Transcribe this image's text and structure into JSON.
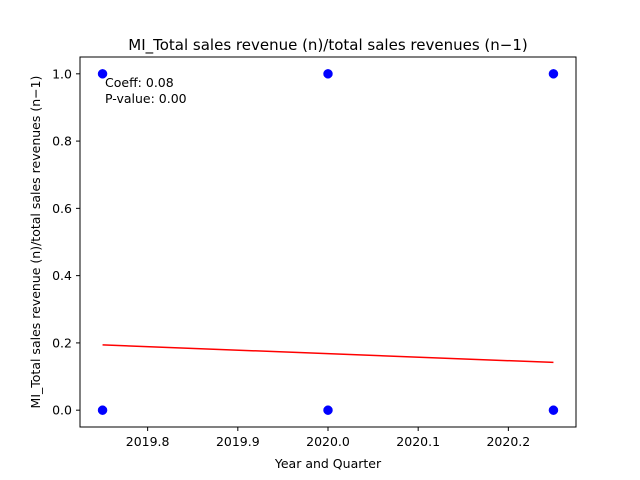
{
  "chart_data": {
    "type": "scatter",
    "title": "MI_Total sales revenue (n)/total sales revenues (n−1)",
    "xlabel": "Year and Quarter",
    "ylabel": "MI_Total sales revenue (n)/total sales revenues (n−1)",
    "xlim": [
      2019.725,
      2020.275
    ],
    "ylim": [
      -0.05,
      1.05
    ],
    "x_ticks": [
      2019.8,
      2019.9,
      2020.0,
      2020.1,
      2020.2
    ],
    "x_tick_labels": [
      "2019.8",
      "2019.9",
      "2020.0",
      "2020.1",
      "2020.2"
    ],
    "y_ticks": [
      0.0,
      0.2,
      0.4,
      0.6,
      0.8,
      1.0
    ],
    "y_tick_labels": [
      "0.0",
      "0.2",
      "0.4",
      "0.6",
      "0.8",
      "1.0"
    ],
    "grid": false,
    "series": [
      {
        "kind": "scatter",
        "color": "#0000ff",
        "points": [
          [
            2019.75,
            0.0
          ],
          [
            2019.75,
            1.0
          ],
          [
            2020.0,
            0.0
          ],
          [
            2020.0,
            1.0
          ],
          [
            2020.25,
            0.0
          ],
          [
            2020.25,
            1.0
          ]
        ]
      },
      {
        "kind": "line",
        "color": "#ff0000",
        "points": [
          [
            2019.75,
            0.194
          ],
          [
            2020.25,
            0.142
          ]
        ]
      }
    ],
    "annotations": [
      "Coeff: 0.08",
      "P-value: 0.00"
    ]
  }
}
